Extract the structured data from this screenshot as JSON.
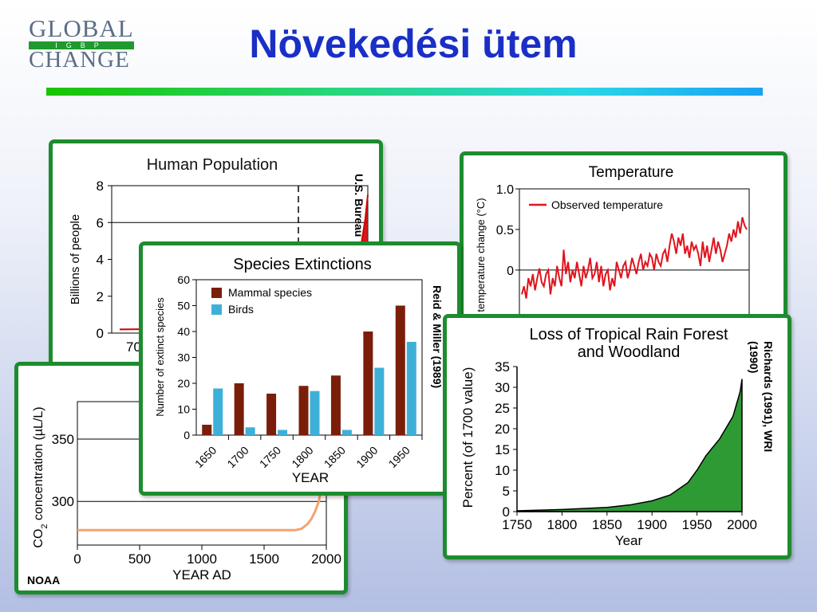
{
  "slide": {
    "title": "Növekedési ütem",
    "logo": {
      "line1": "GLOBAL",
      "line2": "CHANGE",
      "sub": "IGBP"
    }
  },
  "credits": {
    "population": "U.S. Bureau",
    "species": "Reid & Miller (1989)",
    "forest_line1": "Richards (1991), WRI",
    "forest_line2": "(1990)",
    "co2": "NOAA"
  },
  "colors": {
    "card_border": "#1d8c2e",
    "title": "#1a2fc6",
    "mammal": "#7a1e0a",
    "birds": "#3eb0d8",
    "temperature": "#e0141e",
    "forest_fill": "#2e9a34",
    "co2_line": "#f5a26e",
    "population": "#d00000"
  },
  "chart_data": [
    {
      "id": "population",
      "type": "line",
      "title": "Human Population",
      "ylabel": "Billions of people",
      "xlabel": "",
      "ylim": [
        0,
        8
      ],
      "yticks": [
        0,
        2,
        4,
        6,
        8
      ],
      "xtick_label": "70",
      "grid_y": [
        6
      ],
      "series": [
        {
          "x": [
            0,
            80,
            90,
            95,
            97,
            99,
            100
          ],
          "y": [
            0.2,
            0.3,
            1.5,
            3,
            4.5,
            6.2,
            7.5
          ]
        }
      ]
    },
    {
      "id": "species",
      "type": "bar",
      "title": "Species Extinctions",
      "xlabel": "YEAR",
      "ylabel": "Number of extinct species",
      "ylim": [
        0,
        60
      ],
      "yticks": [
        0,
        10,
        20,
        30,
        40,
        50,
        60
      ],
      "categories": [
        "1650",
        "1700",
        "1750",
        "1800",
        "1850",
        "1900",
        "1950"
      ],
      "series": [
        {
          "name": "Mammal species",
          "values": [
            4,
            20,
            16,
            19,
            23,
            40,
            50
          ]
        },
        {
          "name": "Birds",
          "values": [
            18,
            3,
            2,
            17,
            2,
            26,
            36
          ]
        }
      ],
      "legend": "top-left"
    },
    {
      "id": "temperature",
      "type": "line",
      "title": "Temperature",
      "ylabel": "temperature change (°C)",
      "ylim": [
        -0.6,
        1.0
      ],
      "yticks": [
        0,
        0.5,
        1.0
      ],
      "ytick_labels": [
        "0",
        "0.5",
        "1.0"
      ],
      "legend_entry": "Observed temperature",
      "series": [
        {
          "name": "Observed temperature",
          "values": [
            -0.3,
            -0.2,
            -0.35,
            -0.1,
            -0.2,
            -0.05,
            -0.25,
            -0.1,
            0.02,
            -0.15,
            -0.2,
            -0.05,
            0.0,
            -0.3,
            -0.1,
            -0.2,
            0.05,
            -0.1,
            -0.2,
            0.25,
            -0.05,
            0.1,
            -0.15,
            0.0,
            -0.1,
            0.1,
            -0.05,
            -0.2,
            0.05,
            -0.1,
            0.0,
            0.15,
            -0.1,
            -0.05,
            0.1,
            -0.15,
            0.05,
            -0.2,
            -0.05,
            0.0,
            -0.25,
            -0.1,
            -0.2,
            0.1,
            0.0,
            -0.1,
            0.05,
            0.1,
            -0.1,
            0.0,
            0.15,
            0.05,
            -0.05,
            0.1,
            0.2,
            0.0,
            0.1,
            0.05,
            0.2,
            0.15,
            0.0,
            0.2,
            0.1,
            0.05,
            0.2,
            0.25,
            0.1,
            0.3,
            0.45,
            0.35,
            0.2,
            0.4,
            0.3,
            0.45,
            0.2,
            0.3,
            0.15,
            0.35,
            0.25,
            0.3,
            0.2,
            0.05,
            0.35,
            0.15,
            0.3,
            0.1,
            0.25,
            0.4,
            0.2,
            0.35,
            0.25,
            0.1,
            0.2,
            0.3,
            0.45,
            0.35,
            0.5,
            0.4,
            0.6,
            0.45,
            0.65,
            0.55,
            0.5
          ]
        }
      ]
    },
    {
      "id": "forest",
      "type": "area",
      "title": "Loss of Tropical Rain Forest and Woodland",
      "title_line1": "Loss of Tropical Rain Forest",
      "title_line2": "and Woodland",
      "xlabel": "Year",
      "ylabel": "Percent (of 1700 value)",
      "xlim": [
        1750,
        2000
      ],
      "ylim": [
        0,
        35
      ],
      "xticks": [
        1750,
        1800,
        1850,
        1900,
        1950,
        2000
      ],
      "yticks": [
        0,
        5,
        10,
        15,
        20,
        25,
        30,
        35
      ],
      "series": [
        {
          "x": [
            1750,
            1800,
            1850,
            1875,
            1900,
            1920,
            1940,
            1950,
            1960,
            1975,
            1990,
            1998,
            2000
          ],
          "y": [
            0.2,
            0.5,
            1.0,
            1.6,
            2.6,
            4.0,
            7.0,
            10.0,
            13.5,
            17.5,
            23.0,
            29.0,
            32.0
          ]
        }
      ]
    },
    {
      "id": "co2",
      "type": "line",
      "xlabel": "YEAR AD",
      "ylabel": "CO₂ concentration (µL/L)",
      "ylabel_main": "CO",
      "ylabel_sub": "2",
      "ylabel_rest": " concentration (µL/L)",
      "xlim": [
        0,
        2000
      ],
      "ylim": [
        265,
        380
      ],
      "xticks": [
        0,
        500,
        1000,
        1500,
        2000
      ],
      "yticks": [
        300,
        350
      ],
      "series": [
        {
          "x": [
            0,
            1000,
            1600,
            1750,
            1800,
            1850,
            1880,
            1910,
            1940,
            1960,
            1980
          ],
          "y": [
            277,
            277,
            277,
            277,
            278,
            282,
            286,
            292,
            300,
            312,
            330
          ]
        }
      ]
    }
  ]
}
